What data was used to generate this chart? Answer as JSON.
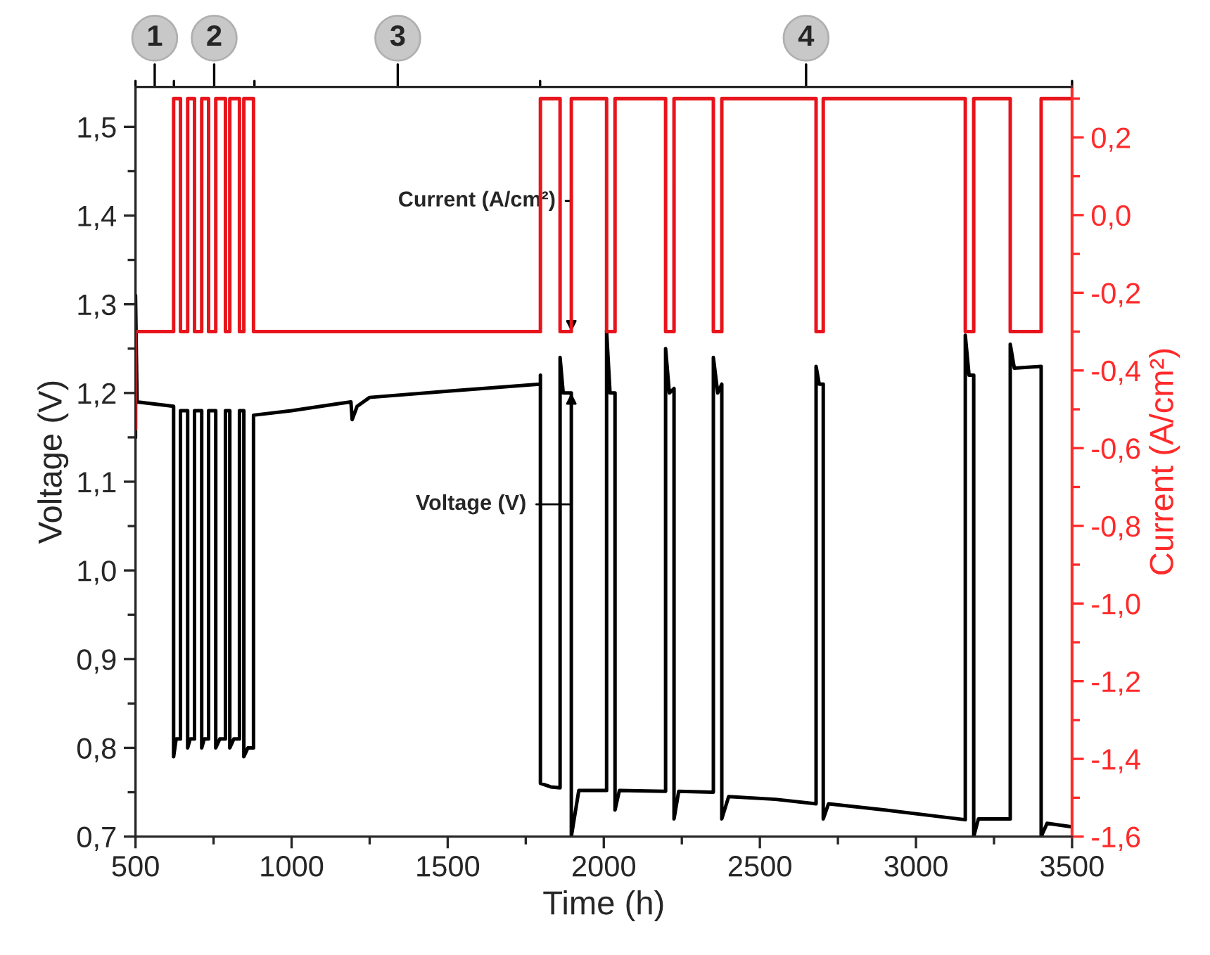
{
  "chart_data": {
    "type": "line",
    "xlabel": "Time (h)",
    "ylabel": "Voltage (V)",
    "y2label": "Current (A/cm²)",
    "xlim": [
      500,
      3500
    ],
    "xticks": [
      500,
      1000,
      1500,
      2000,
      2500,
      3000,
      3500
    ],
    "ylim": [
      0.7,
      1.545
    ],
    "yticks": [
      {
        "value": 0.7,
        "label": "0,7"
      },
      {
        "value": 0.8,
        "label": "0,8"
      },
      {
        "value": 0.9,
        "label": "0,9"
      },
      {
        "value": 1.0,
        "label": "1,0"
      },
      {
        "value": 1.1,
        "label": "1,1"
      },
      {
        "value": 1.2,
        "label": "1,2"
      },
      {
        "value": 1.3,
        "label": "1,3"
      },
      {
        "value": 1.4,
        "label": "1,4"
      },
      {
        "value": 1.5,
        "label": "1,5"
      }
    ],
    "y2lim": [
      -1.6,
      0.33
    ],
    "y2ticks": [
      {
        "value": -1.6,
        "label": "-1,6"
      },
      {
        "value": -1.4,
        "label": "-1,4"
      },
      {
        "value": -1.2,
        "label": "-1,2"
      },
      {
        "value": -1.0,
        "label": "-1,0"
      },
      {
        "value": -0.8,
        "label": "-0,8"
      },
      {
        "value": -0.6,
        "label": "-0,6"
      },
      {
        "value": -0.4,
        "label": "-0,4"
      },
      {
        "value": -0.2,
        "label": "-0,2"
      },
      {
        "value": 0.0,
        "label": "0,0"
      },
      {
        "value": 0.2,
        "label": "0,2"
      }
    ],
    "grid": false,
    "marker": "none",
    "line_style": "solid",
    "series": [
      {
        "color": "#000000",
        "x": [
          500,
          500,
          505,
          622,
          622,
          630,
          644,
          644,
          667,
          667,
          675,
          689,
          689,
          712,
          712,
          720,
          734,
          734,
          757,
          757,
          770,
          788,
          788,
          802,
          802,
          815,
          833,
          833,
          847,
          847,
          860,
          878,
          878,
          1000,
          1150,
          1190,
          1194,
          1210,
          1250,
          1500,
          1797,
          1797,
          1797,
          1830,
          1860,
          1860,
          1870,
          1896,
          1896,
          1920,
          2009,
          2009,
          2020,
          2036,
          2036,
          2050,
          2198,
          2198,
          2210,
          2225,
          2225,
          2240,
          2351,
          2351,
          2365,
          2378,
          2378,
          2400,
          2550,
          2680,
          2680,
          2690,
          2703,
          2703,
          2720,
          2900,
          3158,
          3158,
          3170,
          3185,
          3185,
          3200,
          3302,
          3302,
          3315,
          3401,
          3401,
          3420,
          3500
        ],
        "values": [
          1.15,
          1.31,
          1.19,
          1.185,
          0.79,
          0.81,
          0.81,
          1.18,
          1.18,
          0.8,
          0.81,
          0.81,
          1.18,
          1.18,
          0.8,
          0.81,
          0.81,
          1.18,
          1.18,
          0.8,
          0.81,
          0.81,
          1.18,
          1.18,
          0.8,
          0.81,
          0.81,
          1.18,
          1.18,
          0.79,
          0.8,
          0.8,
          1.175,
          1.18,
          1.188,
          1.19,
          1.17,
          1.185,
          1.195,
          1.202,
          1.21,
          1.22,
          0.76,
          0.756,
          0.755,
          1.24,
          1.2,
          1.2,
          0.7,
          0.752,
          0.752,
          1.27,
          1.2,
          1.2,
          0.73,
          0.752,
          0.751,
          1.25,
          1.2,
          1.205,
          0.72,
          0.751,
          0.75,
          1.24,
          1.2,
          1.21,
          0.72,
          0.745,
          0.742,
          0.737,
          1.23,
          1.21,
          1.21,
          0.72,
          0.737,
          0.73,
          0.719,
          1.265,
          1.22,
          1.22,
          0.7,
          0.72,
          0.72,
          1.255,
          1.228,
          1.23,
          0.7,
          0.715,
          0.711
        ]
      },
      {
        "color": "#e8141c",
        "axis": "y2",
        "x": [
          500,
          500,
          622,
          622,
          644,
          644,
          667,
          667,
          689,
          689,
          712,
          712,
          734,
          734,
          757,
          757,
          788,
          788,
          802,
          802,
          833,
          833,
          847,
          847,
          878,
          878,
          1797,
          1797,
          1860,
          1860,
          1896,
          1896,
          2009,
          2009,
          2036,
          2036,
          2198,
          2198,
          2225,
          2225,
          2351,
          2351,
          2378,
          2378,
          2680,
          2680,
          2703,
          2703,
          3158,
          3158,
          3185,
          3185,
          3302,
          3302,
          3401,
          3401,
          3500
        ],
        "values": [
          -0.55,
          -0.3,
          -0.3,
          0.3,
          0.3,
          -0.3,
          -0.3,
          0.3,
          0.3,
          -0.3,
          -0.3,
          0.3,
          0.3,
          -0.3,
          -0.3,
          0.3,
          0.3,
          -0.3,
          -0.3,
          0.3,
          0.3,
          -0.3,
          -0.3,
          0.3,
          0.3,
          -0.3,
          -0.3,
          0.3,
          0.3,
          -0.3,
          -0.3,
          0.3,
          0.3,
          -0.3,
          -0.3,
          0.3,
          0.3,
          -0.3,
          -0.3,
          0.3,
          0.3,
          -0.3,
          -0.3,
          0.3,
          0.3,
          -0.3,
          -0.3,
          0.3,
          0.3,
          -0.3,
          -0.3,
          0.3,
          0.3,
          -0.3,
          -0.3,
          0.3,
          0.3
        ]
      }
    ],
    "annotations": [
      "1",
      "2",
      "3",
      "4",
      {
        "text": "Current (A/cm²)",
        "x": 1896,
        "y": 1.269
      },
      {
        "text": "Voltage (V)",
        "x": 1896,
        "y": 1.2
      }
    ]
  }
}
